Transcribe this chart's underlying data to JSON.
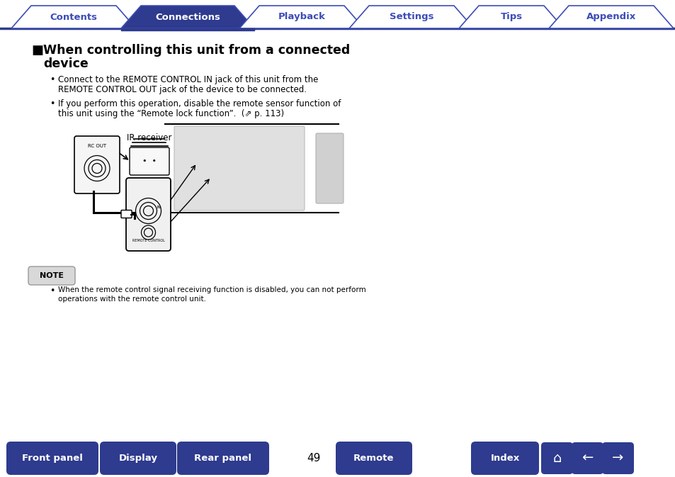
{
  "bg_color": "#ffffff",
  "tab_active_color": "#2e3b8e",
  "tab_inactive_color": "#ffffff",
  "tab_border_color": "#3d4db7",
  "tab_text_active": "#ffffff",
  "tab_text_inactive": "#3d4db7",
  "tabs": [
    "Contents",
    "Connections",
    "Playback",
    "Settings",
    "Tips",
    "Appendix"
  ],
  "active_tab": 1,
  "title_line1": "When controlling this unit from a connected",
  "title_line2": "device",
  "bullet1_line1": "Connect to the REMOTE CONTROL IN jack of this unit from the",
  "bullet1_line2": "REMOTE CONTROL OUT jack of the device to be connected.",
  "bullet2_line1": "If you perform this operation, disable the remote sensor function of",
  "bullet2_line2": "this unit using the “Remote lock function”.  (⇗ p. 113)",
  "ir_label": "IR receiver",
  "rc_out_label": "RC OUT",
  "note_label": "NOTE",
  "note_line1": "When the remote control signal receiving function is disabled, you can not perform",
  "note_line2": "operations with the remote control unit.",
  "page_number": "49",
  "bottom_buttons": [
    "Front panel",
    "Display",
    "Rear panel",
    "Remote",
    "Index"
  ],
  "btn_gradient_top": "#5567cc",
  "btn_gradient_bot": "#2e3b8e",
  "btn_text_color": "#ffffff",
  "line_color": "#2e3b8e",
  "text_color": "#000000",
  "tab_line_color": "#2e3b8e"
}
